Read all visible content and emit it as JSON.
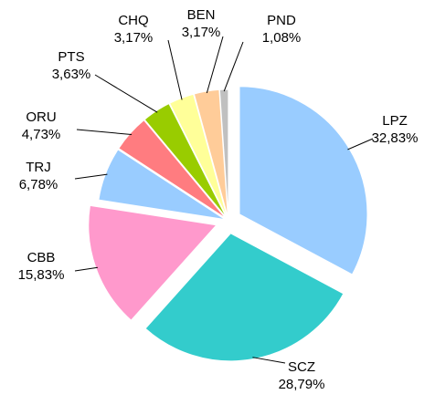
{
  "chart_data": {
    "type": "pie",
    "categories": [
      "LPZ",
      "SCZ",
      "CBB",
      "TRJ",
      "ORU",
      "PTS",
      "CHQ",
      "BEN",
      "PND"
    ],
    "values": [
      32.83,
      28.79,
      15.83,
      6.78,
      4.73,
      3.63,
      3.17,
      3.17,
      1.08
    ],
    "value_labels": [
      "32,83%",
      "28,79%",
      "15,83%",
      "6,78%",
      "4,73%",
      "3,63%",
      "3,17%",
      "3,17%",
      "1,08%"
    ],
    "colors": [
      "#99ccff",
      "#33cccc",
      "#ff99cc",
      "#99ccff",
      "#ff7c80",
      "#99cc00",
      "#ffff99",
      "#ffcc99",
      "#c0c0c0"
    ]
  }
}
